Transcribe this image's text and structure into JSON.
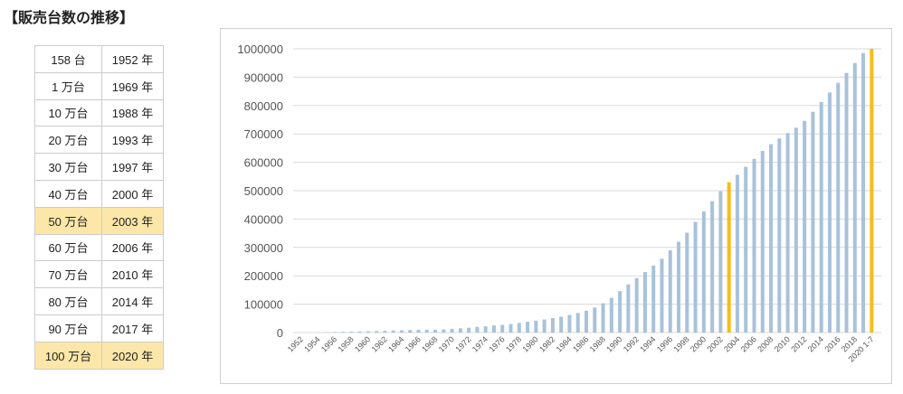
{
  "title": "【販売台数の推移】",
  "table": {
    "rows": [
      [
        "158 台",
        "1952 年"
      ],
      [
        "1 万台",
        "1969 年"
      ],
      [
        "10 万台",
        "1988 年"
      ],
      [
        "20 万台",
        "1993 年"
      ],
      [
        "30 万台",
        "1997 年"
      ],
      [
        "40 万台",
        "2000 年"
      ],
      [
        "50 万台",
        "2003 年"
      ],
      [
        "60 万台",
        "2006 年"
      ],
      [
        "70 万台",
        "2010 年"
      ],
      [
        "80 万台",
        "2014 年"
      ],
      [
        "90 万台",
        "2017 年"
      ],
      [
        "100 万台",
        "2020 年"
      ]
    ],
    "highlight_rows": [
      6,
      11
    ],
    "highlight_color": "#fde7a8"
  },
  "chart_data": {
    "type": "bar",
    "categories": [
      "1952",
      null,
      "1954",
      null,
      "1956",
      null,
      "1958",
      null,
      "1960",
      null,
      "1962",
      null,
      "1964",
      null,
      "1966",
      null,
      "1968",
      null,
      "1970",
      null,
      "1972",
      null,
      "1974",
      null,
      "1976",
      null,
      "1978",
      null,
      "1980",
      null,
      "1982",
      null,
      "1984",
      null,
      "1986",
      null,
      "1988",
      null,
      "1990",
      null,
      "1992",
      null,
      "1994",
      null,
      "1996",
      null,
      "1998",
      null,
      "2000",
      null,
      "2002",
      null,
      "2004",
      null,
      "2006",
      null,
      "2008",
      null,
      "2010",
      null,
      "2012",
      null,
      "2014",
      null,
      "2016",
      null,
      "2018",
      null,
      "2020 1-7"
    ],
    "values": [
      158,
      500,
      1000,
      1500,
      2000,
      2600,
      3200,
      3900,
      4600,
      5400,
      6300,
      7200,
      8000,
      8800,
      9400,
      9800,
      9900,
      11000,
      13000,
      15000,
      17000,
      20000,
      22000,
      25000,
      27000,
      30000,
      34000,
      38000,
      42000,
      46000,
      51000,
      56000,
      62000,
      69000,
      77000,
      88000,
      103000,
      122000,
      146000,
      170000,
      192000,
      213000,
      236000,
      260000,
      290000,
      320000,
      352000,
      390000,
      427000,
      463000,
      498000,
      530000,
      556000,
      584000,
      612000,
      640000,
      664000,
      684000,
      703000,
      722000,
      746000,
      778000,
      812000,
      846000,
      880000,
      915000,
      950000,
      985000,
      1000000
    ],
    "color": "#a8c2da",
    "highlight_indices": [
      51,
      68
    ],
    "highlight_color": "#f5bd16",
    "ylim": [
      0,
      1000000
    ],
    "yticks": [
      0,
      100000,
      200000,
      300000,
      400000,
      500000,
      600000,
      700000,
      800000,
      900000,
      1000000
    ],
    "grid": true
  }
}
